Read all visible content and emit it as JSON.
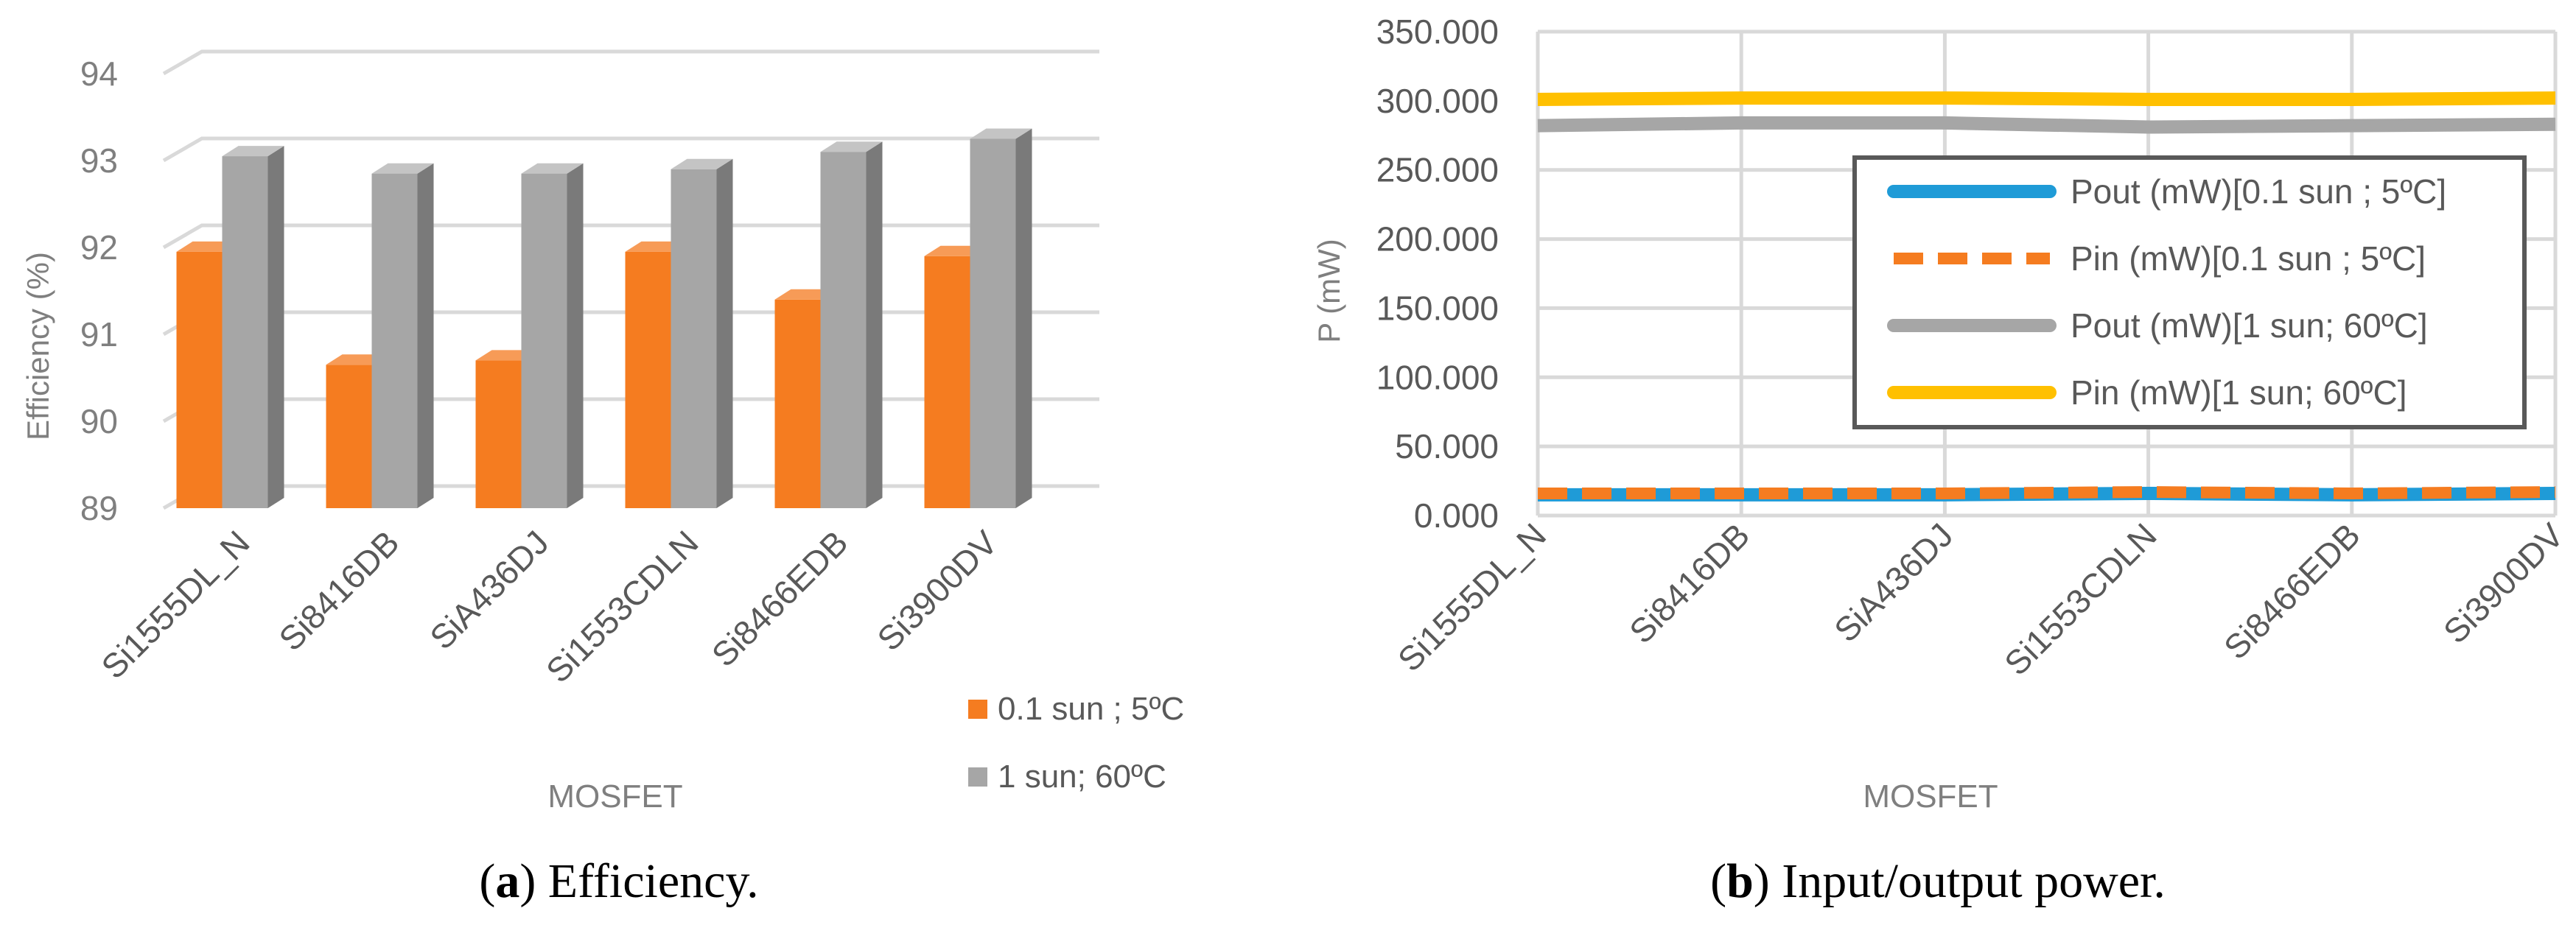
{
  "chart_data": [
    {
      "type": "bar",
      "panel_caption_letter": "a",
      "panel_caption_text": ") Efficiency.",
      "panel_caption_paren": "(",
      "title": "",
      "xlabel": "MOSFET",
      "ylabel": "Efficiency  (%)",
      "ylim": [
        89,
        94
      ],
      "yticks": [
        "89",
        "90",
        "91",
        "92",
        "93",
        "94"
      ],
      "categories": [
        "Si1555DL_N",
        "Si8416DB",
        "SiA436DJ",
        "Si1553CDLN",
        "Si8466EDB",
        "Si3900DV"
      ],
      "series": [
        {
          "name": "0.1 sun ; 5ºC",
          "values": [
            91.95,
            90.65,
            90.7,
            91.95,
            91.4,
            91.9
          ],
          "color": "#F57C20",
          "side": "#C45A0E",
          "top": "#F79B57"
        },
        {
          "name": "1 sun; 60ºC",
          "values": [
            93.05,
            92.85,
            92.85,
            92.9,
            93.1,
            93.25
          ],
          "color": "#A6A6A6",
          "side": "#7A7A7A",
          "top": "#C4C4C4"
        }
      ],
      "grid": true,
      "legend_position": "bottom-right"
    },
    {
      "type": "line",
      "panel_caption_letter": "b",
      "panel_caption_text": ") Input/output power.",
      "panel_caption_paren": "(",
      "title": "",
      "xlabel": "MOSFET",
      "ylabel": "P (mW)",
      "ylim": [
        0,
        350
      ],
      "yticks": [
        "0.000",
        "50.000",
        "100.000",
        "150.000",
        "200.000",
        "250.000",
        "300.000",
        "350.000"
      ],
      "categories": [
        "Si1555DL_N",
        "Si8416DB",
        "SiA436DJ",
        "Si1553CDLN",
        "Si8466EDB",
        "Si3900DV"
      ],
      "series": [
        {
          "name": "Pout (mW)[0.1 sun ; 5ºC]",
          "values": [
            15,
            15,
            15,
            16,
            15,
            16
          ],
          "color": "#1F9BD7",
          "dash": false
        },
        {
          "name": "Pin (mW)[0.1 sun ; 5ºC]",
          "values": [
            16,
            16,
            16,
            17,
            16,
            17
          ],
          "color": "#F57C20",
          "dash": true
        },
        {
          "name": "Pout (mW)[1 sun; 60ºC]",
          "values": [
            282,
            284,
            284,
            281,
            282,
            283
          ],
          "color": "#A6A6A6",
          "dash": false
        },
        {
          "name": "Pin (mW)[1 sun; 60ºC]",
          "values": [
            301,
            302,
            302,
            301,
            301,
            302
          ],
          "color": "#FFC000",
          "dash": false
        }
      ],
      "grid": true,
      "legend_position": "top-right"
    }
  ]
}
